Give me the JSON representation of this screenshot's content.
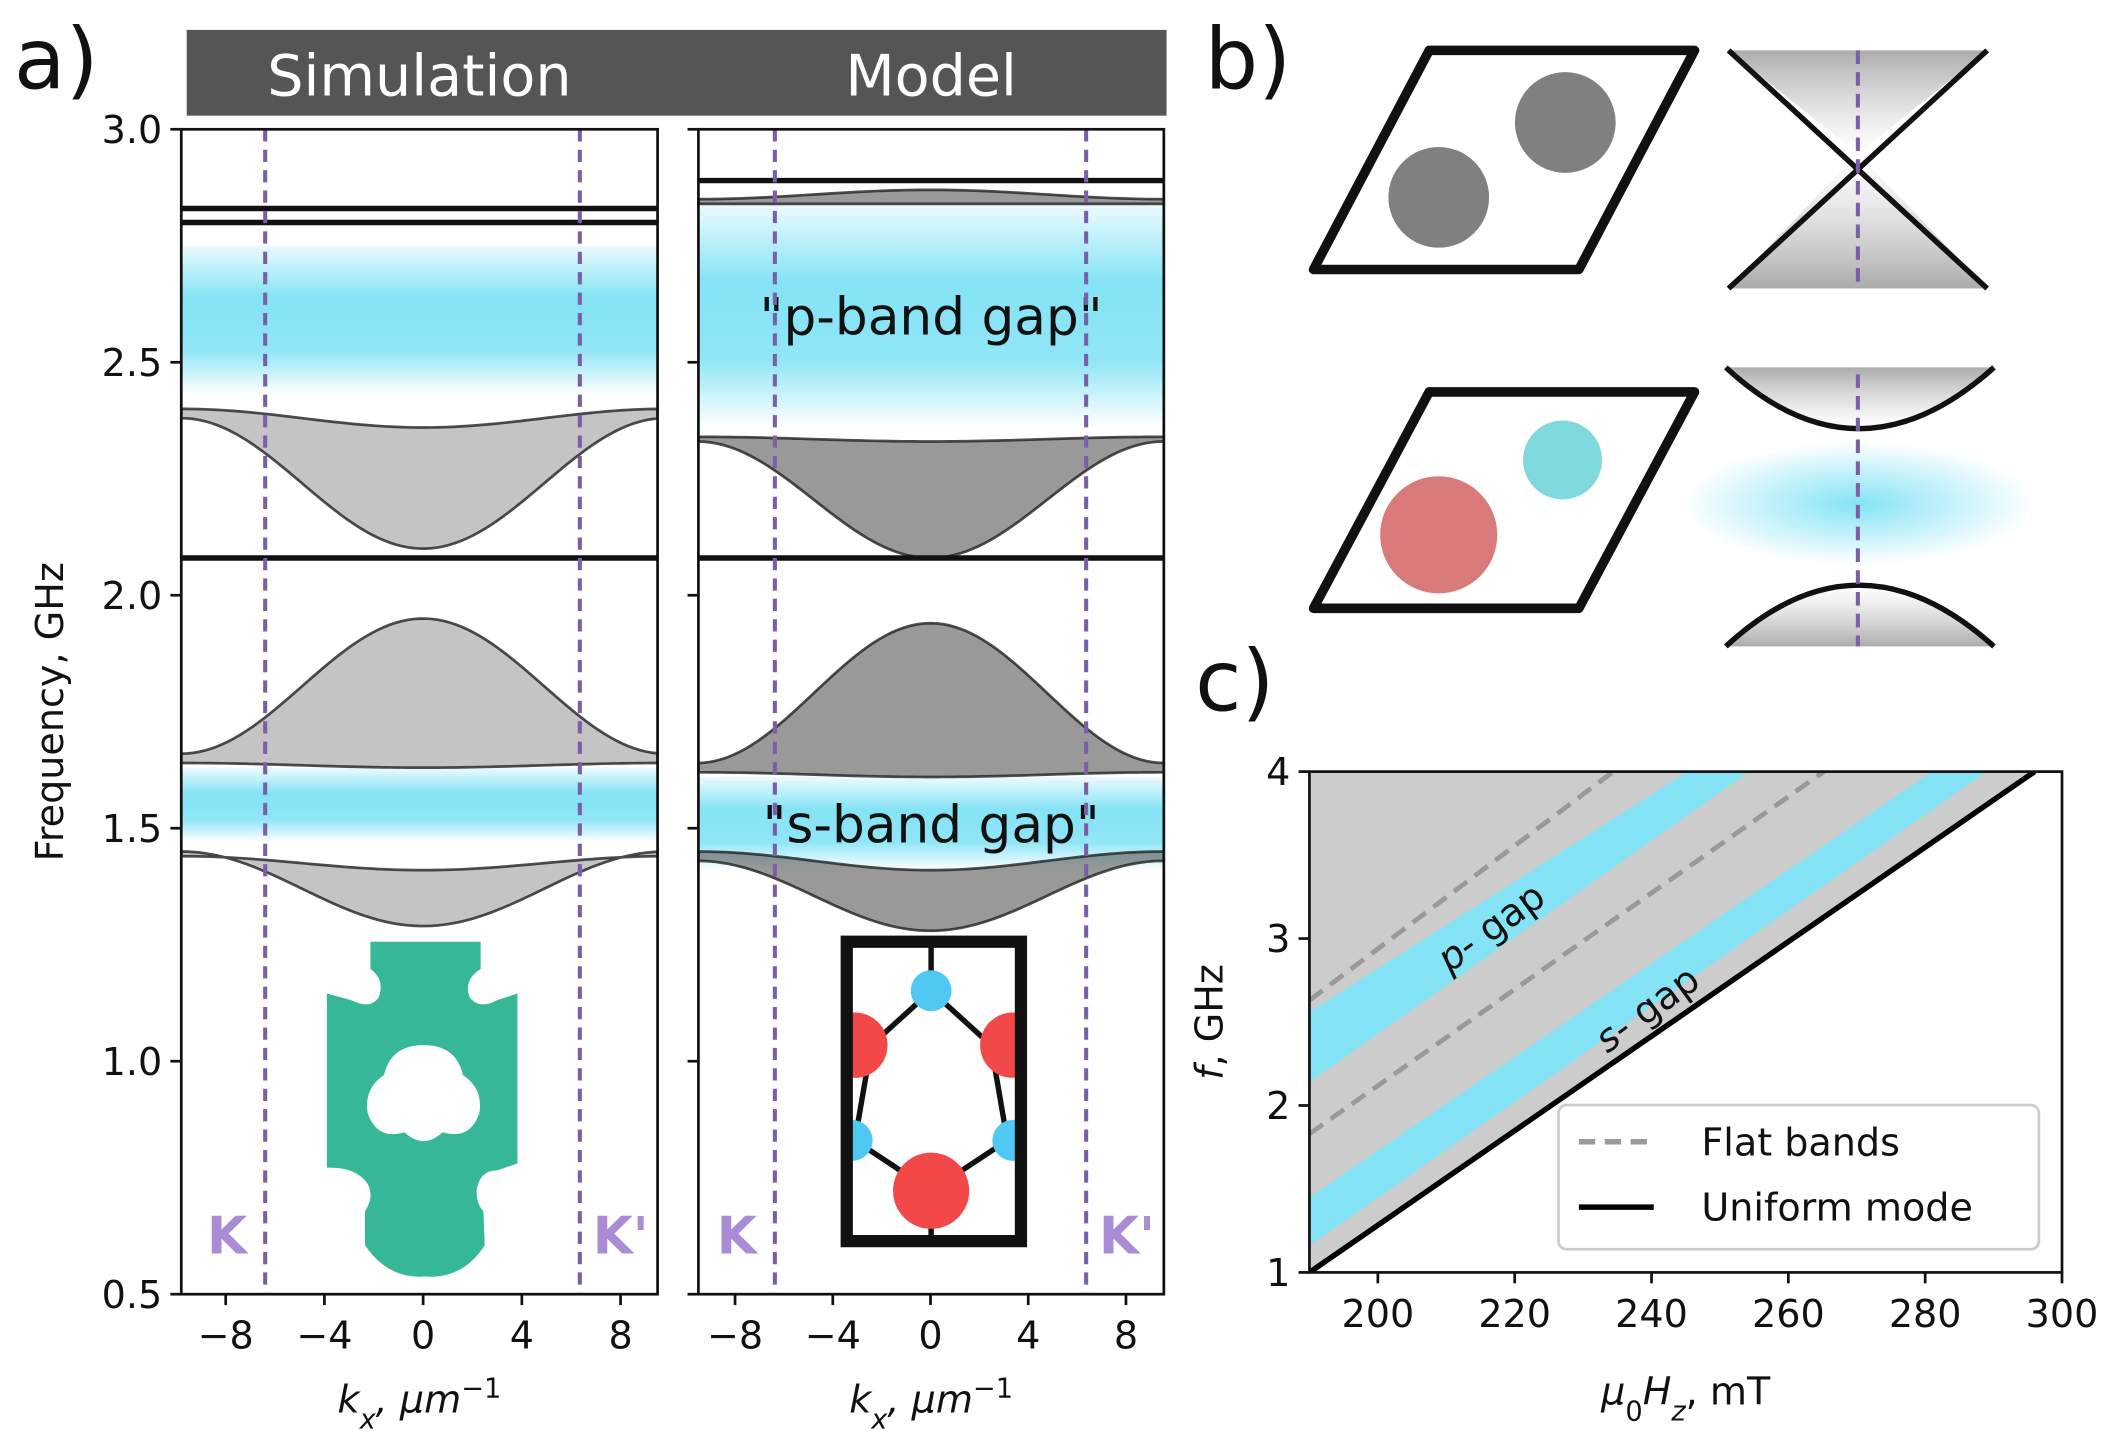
{
  "chart_data": [
    {
      "type": "band-structure",
      "panel": "a)",
      "title": "Simulation",
      "ylabel": "Frequency, GHz",
      "xlabel": [
        "k",
        "x",
        ", μm",
        "−1"
      ],
      "xlim": [
        -9.8,
        9.5
      ],
      "xticks": [
        {
          "value": -8,
          "label": "−8"
        },
        {
          "value": -4,
          "label": "−4"
        },
        0,
        4,
        8
      ],
      "ylim": [
        0.5,
        3.0
      ],
      "yticks": [
        0.5,
        {
          "value": 1,
          "label": "1.0"
        },
        1.5,
        {
          "value": 2,
          "label": "2.0"
        },
        2.5,
        {
          "value": 3,
          "label": "3.0"
        }
      ],
      "k_points": [
        {
          "label": "K",
          "value": -6.4
        },
        {
          "label": "K'",
          "value": 6.35
        }
      ],
      "gaps": [
        {
          "range": [
            2.43,
            2.75
          ]
        },
        {
          "range": [
            1.47,
            1.63
          ]
        }
      ],
      "bands": [
        {
          "top": [
            1.44,
            1.41
          ],
          "bottom": [
            1.45,
            1.29
          ]
        },
        {
          "top": [
            1.66,
            1.95
          ],
          "bottom": [
            1.64,
            1.63
          ]
        },
        {
          "top": [
            2.4,
            2.36
          ],
          "bottom": [
            2.38,
            2.1
          ]
        }
      ],
      "flat_lines": [
        2.08,
        2.8,
        2.83
      ],
      "color": "#84e3f5"
    },
    {
      "type": "band-structure",
      "title": "Model",
      "xlabel": [
        "k",
        "x",
        ", μm",
        "−1"
      ],
      "xlim": [
        -9.5,
        9.55
      ],
      "xticks": [
        {
          "value": -8,
          "label": "−8"
        },
        {
          "value": -4,
          "label": "−4"
        },
        0,
        4,
        8
      ],
      "ylim": [
        0.5,
        3.0
      ],
      "yticks": [
        0.5,
        1,
        1.5,
        2,
        2.5,
        3
      ],
      "ytick_labels": false,
      "k_points": [
        {
          "label": "K",
          "value": -6.37
        },
        {
          "label": "K'",
          "value": 6.37
        }
      ],
      "gaps": [
        {
          "label": "\"p-band gap\"",
          "range": [
            2.36,
            2.84
          ]
        },
        {
          "label": "\"s-band gap\"",
          "range": [
            1.41,
            1.61
          ]
        }
      ],
      "bands": [
        {
          "top": [
            1.45,
            1.41
          ],
          "bottom": [
            1.43,
            1.28
          ]
        },
        {
          "top": [
            1.64,
            1.94
          ],
          "bottom": [
            1.62,
            1.61
          ]
        },
        {
          "top": [
            2.34,
            2.33
          ],
          "bottom": [
            2.33,
            2.08
          ]
        },
        {
          "top": [
            2.85,
            2.87
          ],
          "bottom": [
            2.84,
            2.84
          ]
        }
      ],
      "flat_lines": [
        2.08,
        2.89
      ],
      "color": "#84e3f5"
    },
    {
      "type": "line",
      "panel": "c)",
      "xlabel": [
        "μ",
        "0",
        "H",
        "z",
        ", mT"
      ],
      "ylabel": [
        "f",
        ", GHz"
      ],
      "xlim": [
        190,
        300
      ],
      "xticks": [
        200,
        220,
        240,
        260,
        280,
        300
      ],
      "ylim": [
        1,
        4
      ],
      "yticks": [
        1,
        2,
        3,
        4
      ],
      "legend": "lower right",
      "areas": [
        {
          "symbol": "p",
          "label": "- gap",
          "color": "#84e3f5",
          "lower": {
            "x": [
              190,
              254.3
            ],
            "values": [
              2.14,
              4
            ]
          },
          "upper": {
            "x": [
              190,
              245.3
            ],
            "values": [
              2.56,
              4
            ]
          }
        },
        {
          "symbol": "s",
          "label": "- gap",
          "color": "#84e3f5",
          "lower": {
            "x": [
              190,
              289
            ],
            "values": [
              1.16,
              4
            ]
          },
          "upper": {
            "x": [
              190,
              281
            ],
            "values": [
              1.45,
              4
            ]
          }
        }
      ],
      "series": [
        {
          "name": "Flat bands",
          "color": "#999999",
          "dashed": true,
          "segments": [
            {
              "x": [
                190,
                234.4
              ],
              "values": [
                2.63,
                4
              ]
            },
            {
              "x": [
                190,
                265.2
              ],
              "values": [
                1.83,
                4
              ]
            }
          ]
        },
        {
          "name": "Uniform mode",
          "color": "#000000",
          "x": [
            190,
            296
          ],
          "values": [
            1,
            4
          ]
        }
      ]
    }
  ],
  "diagram": {
    "panel": "b)"
  }
}
